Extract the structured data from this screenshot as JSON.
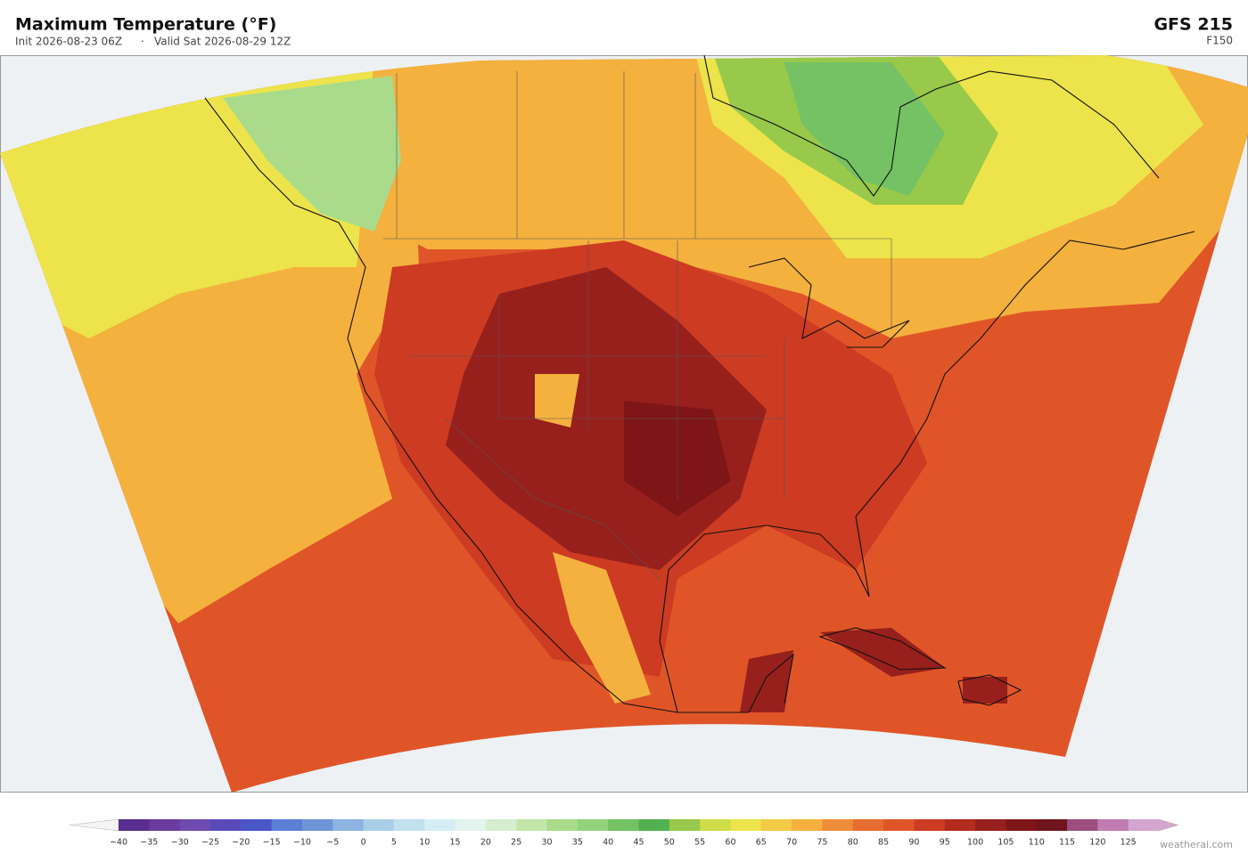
{
  "header": {
    "title": "Maximum Temperature  (°F)",
    "init": "Init 2026-08-23 06Z",
    "separator": "·",
    "valid": "Valid Sat 2026-08-29 12Z",
    "model": "GFS  215",
    "forecast_hour": "F150"
  },
  "colorbar": {
    "ticks": [
      {
        "value": -40,
        "label": "−40"
      },
      {
        "value": -35,
        "label": "−35"
      },
      {
        "value": -30,
        "label": "−30"
      },
      {
        "value": -25,
        "label": "−25"
      },
      {
        "value": -20,
        "label": "−20"
      },
      {
        "value": -15,
        "label": "−15"
      },
      {
        "value": -10,
        "label": "−10"
      },
      {
        "value": -5,
        "label": "−5"
      },
      0,
      5,
      10,
      15,
      20,
      25,
      30,
      35,
      40,
      45,
      50,
      55,
      60,
      65,
      70,
      75,
      80,
      85,
      90,
      95,
      100,
      105,
      110,
      115,
      120,
      125
    ],
    "colors": [
      "#5a2d91",
      "#6a3a9e",
      "#6e4bb0",
      "#5a4ab8",
      "#4a55c8",
      "#5c7ed4",
      "#6f94d8",
      "#8db4e0",
      "#a9cfe8",
      "#c2e1ef",
      "#d5eef3",
      "#e4f4ee",
      "#d6eed0",
      "#c2e6a8",
      "#a9db8a",
      "#92d27a",
      "#74c264",
      "#52b050",
      "#98c94a",
      "#cfdc4a",
      "#ece44a",
      "#f3cb44",
      "#f4b13e",
      "#ee8d38",
      "#e76e30",
      "#e05528",
      "#cc3b22",
      "#b32a1e",
      "#97201c",
      "#7e1618",
      "#6e141c",
      "#9c4f7e",
      "#c07cb2",
      "#d4a5d0"
    ],
    "under_color": "#f4f4f4",
    "over_color": "#d4a5d0"
  },
  "footer": {
    "credit": "weatherai.com"
  }
}
